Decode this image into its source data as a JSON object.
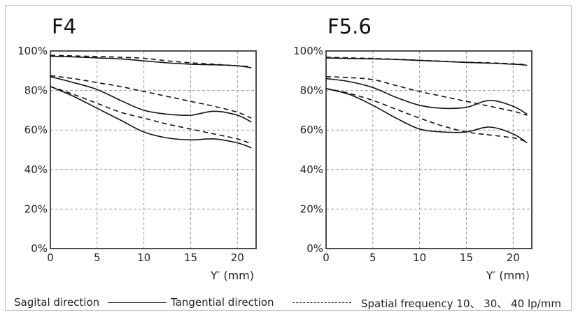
{
  "chart_data": [
    {
      "type": "line",
      "title": "F4",
      "xlabel": "Y′ (mm)",
      "xlim": [
        0,
        22
      ],
      "ylim": [
        0,
        100
      ],
      "x_ticks": [
        "0",
        "5",
        "10",
        "15",
        "20"
      ],
      "y_ticks": [
        "0%",
        "20%",
        "40%",
        "60%",
        "80%",
        "100%"
      ],
      "grid": true,
      "series": [
        {
          "style": "solid",
          "x": [
            0,
            2.5,
            5,
            7.5,
            10,
            12.5,
            15,
            17.5,
            20,
            21.5
          ],
          "y": [
            97.3,
            97,
            96.5,
            96,
            95,
            94,
            93.3,
            93,
            92.5,
            91.5
          ]
        },
        {
          "style": "dashed",
          "x": [
            0,
            2.5,
            5,
            7.5,
            10,
            12.5,
            15,
            17.5,
            20,
            21.5
          ],
          "y": [
            97.8,
            97.5,
            97.2,
            96.8,
            96.3,
            95,
            94,
            93.3,
            92.5,
            92
          ]
        },
        {
          "style": "solid",
          "x": [
            0,
            2.5,
            5,
            7.5,
            10,
            12.5,
            15,
            17.5,
            20,
            21.5
          ],
          "y": [
            87,
            84,
            80.5,
            75,
            70,
            68,
            67.5,
            69.5,
            67.5,
            64
          ]
        },
        {
          "style": "dashed",
          "x": [
            0,
            2.5,
            5,
            7.5,
            10,
            12.5,
            15,
            17.5,
            20,
            21.5
          ],
          "y": [
            87.5,
            86,
            84,
            82,
            79.5,
            77,
            74.5,
            72,
            69,
            66
          ]
        },
        {
          "style": "solid",
          "x": [
            0,
            2.5,
            5,
            7.5,
            10,
            12.5,
            15,
            17.5,
            20,
            21.5
          ],
          "y": [
            82,
            77,
            71,
            65,
            59,
            56,
            55,
            55.5,
            53.5,
            51
          ]
        },
        {
          "style": "dashed",
          "x": [
            0,
            2.5,
            5,
            7.5,
            10,
            12.5,
            15,
            17.5,
            20,
            21.5
          ],
          "y": [
            82,
            78,
            73.5,
            69,
            66,
            63,
            60.5,
            58,
            55.5,
            53
          ]
        }
      ]
    },
    {
      "type": "line",
      "title": "F5.6",
      "xlabel": "Y′ (mm)",
      "xlim": [
        0,
        22
      ],
      "ylim": [
        0,
        100
      ],
      "x_ticks": [
        "0",
        "5",
        "10",
        "15",
        "20"
      ],
      "y_ticks": [
        "0%",
        "20%",
        "40%",
        "60%",
        "80%",
        "100%"
      ],
      "grid": true,
      "series": [
        {
          "style": "solid",
          "x": [
            0,
            2.5,
            5,
            7.5,
            10,
            12.5,
            15,
            17.5,
            20,
            21.5
          ],
          "y": [
            96.5,
            96.2,
            96,
            95.7,
            95.2,
            94.7,
            94.2,
            93.8,
            93.3,
            92.8
          ]
        },
        {
          "style": "dashed",
          "x": [
            0,
            2.5,
            5,
            7.5,
            10,
            12.5,
            15,
            17.5,
            20,
            21.5
          ],
          "y": [
            96.8,
            96.5,
            96.2,
            95.8,
            95.3,
            94.8,
            94.3,
            94,
            93.5,
            93
          ]
        },
        {
          "style": "solid",
          "x": [
            0,
            2.5,
            5,
            7.5,
            10,
            12.5,
            15,
            17.5,
            20,
            21.5
          ],
          "y": [
            86,
            84.5,
            81.5,
            76.5,
            72.5,
            71,
            71.5,
            75,
            72,
            68
          ]
        },
        {
          "style": "dashed",
          "x": [
            0,
            2.5,
            5,
            7.5,
            10,
            12.5,
            15,
            17.5,
            20,
            21.5
          ],
          "y": [
            87,
            86.5,
            85.5,
            82.5,
            79.5,
            77,
            74.5,
            72,
            69.5,
            67.5
          ]
        },
        {
          "style": "solid",
          "x": [
            0,
            2.5,
            5,
            7.5,
            10,
            12.5,
            15,
            17.5,
            20,
            21.5
          ],
          "y": [
            81,
            78,
            72.5,
            66,
            60.5,
            59,
            59,
            61.5,
            58,
            53.5
          ]
        },
        {
          "style": "dashed",
          "x": [
            0,
            2.5,
            5,
            7.5,
            10,
            12.5,
            15,
            17.5,
            20,
            21.5
          ],
          "y": [
            81,
            78.5,
            75,
            70.5,
            66,
            62,
            59,
            57.5,
            56,
            54
          ]
        }
      ]
    }
  ],
  "legend": {
    "sagittal_label": "Sagital direction",
    "tangential_label": "Tangential direction",
    "frequency_label": "Spatial frequency 10、 30、 40 lp/mm"
  }
}
